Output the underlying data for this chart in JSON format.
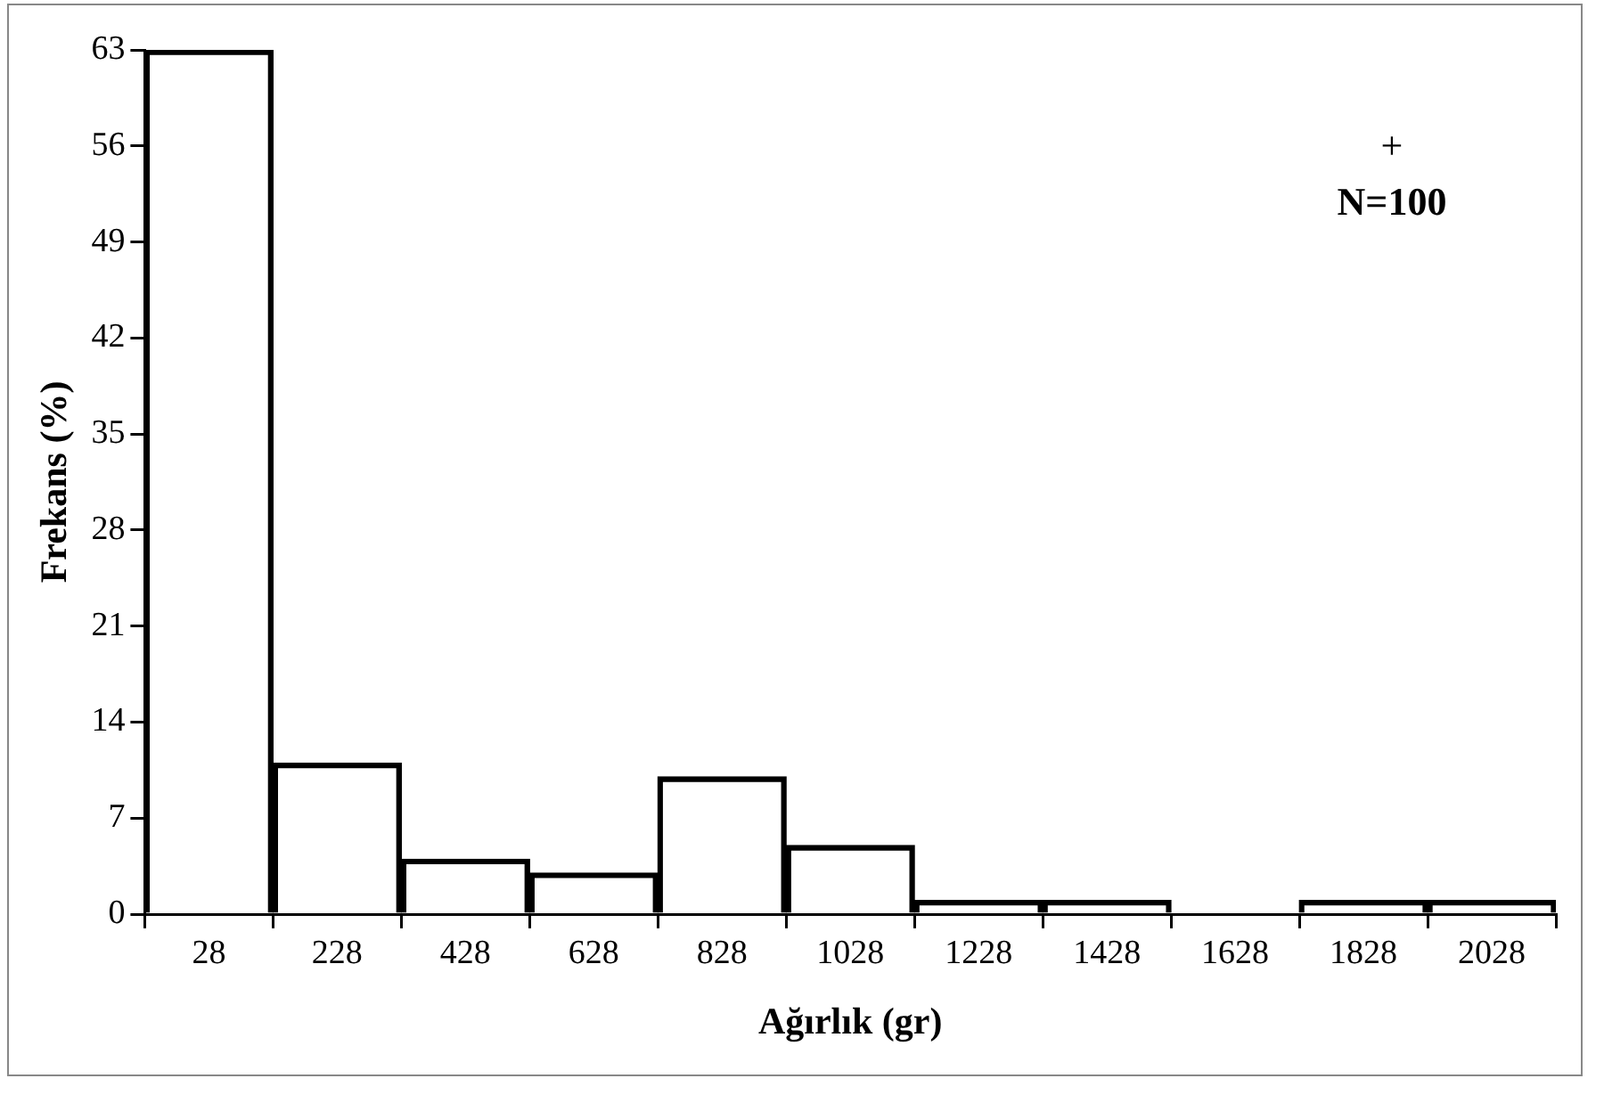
{
  "chart_data": {
    "type": "bar",
    "xlabel": "Ağırlık (gr)",
    "ylabel": "Frekans (%)",
    "categories": [
      "28",
      "228",
      "428",
      "628",
      "828",
      "1028",
      "1228",
      "1428",
      "1628",
      "1828",
      "2028"
    ],
    "values": [
      63,
      11,
      4,
      3,
      10,
      5,
      1,
      1,
      0,
      1,
      1
    ],
    "color": "#000000",
    "ylim": [
      0,
      63
    ],
    "yticks": [
      0,
      7,
      14,
      21,
      28,
      35,
      42,
      49,
      56,
      63
    ],
    "grid": false,
    "legend": false,
    "annotations": [
      "+",
      "N=100"
    ]
  }
}
